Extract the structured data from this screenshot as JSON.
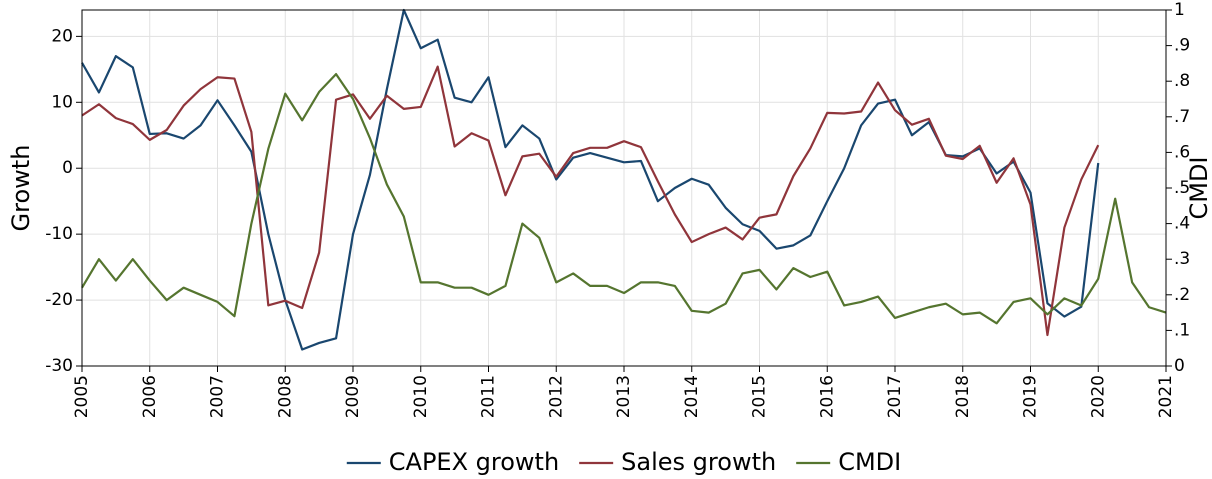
{
  "chart_data": {
    "type": "line",
    "ylabel": "Growth",
    "y2label": "CMDI",
    "xlim": [
      2005,
      2021
    ],
    "xticks": [
      2005,
      2006,
      2007,
      2008,
      2009,
      2010,
      2011,
      2012,
      2013,
      2014,
      2015,
      2016,
      2017,
      2018,
      2019,
      2020,
      2021
    ],
    "ylim": [
      -30,
      24
    ],
    "yticks": [
      -30,
      -20,
      -10,
      0,
      10,
      20
    ],
    "y2lim": [
      0,
      1
    ],
    "y2ticks": [
      0,
      {
        "value": 0.1,
        "label": ".1"
      },
      {
        "value": 0.2,
        "label": ".2"
      },
      {
        "value": 0.3,
        "label": ".3"
      },
      {
        "value": 0.4,
        "label": ".4"
      },
      {
        "value": 0.5,
        "label": ".5"
      },
      {
        "value": 0.6,
        "label": ".6"
      },
      {
        "value": 0.7,
        "label": ".7"
      },
      {
        "value": 0.8,
        "label": ".8"
      },
      {
        "value": 0.9,
        "label": ".9"
      },
      1
    ],
    "grid": true,
    "legend": "bottom",
    "x": [
      2005,
      2005.25,
      2005.5,
      2005.75,
      2006,
      2006.25,
      2006.5,
      2006.75,
      2007,
      2007.25,
      2007.5,
      2007.75,
      2008,
      2008.25,
      2008.5,
      2008.75,
      2009,
      2009.25,
      2009.5,
      2009.75,
      2010,
      2010.25,
      2010.5,
      2010.75,
      2011,
      2011.25,
      2011.5,
      2011.75,
      2012,
      2012.25,
      2012.5,
      2012.75,
      2013,
      2013.25,
      2013.5,
      2013.75,
      2014,
      2014.25,
      2014.5,
      2014.75,
      2015,
      2015.25,
      2015.5,
      2015.75,
      2016,
      2016.25,
      2016.5,
      2016.75,
      2017,
      2017.25,
      2017.5,
      2017.75,
      2018,
      2018.25,
      2018.5,
      2018.75,
      2019,
      2019.25,
      2019.5,
      2019.75,
      2020,
      2020.25,
      2020.5,
      2020.75,
      2021
    ],
    "series": [
      {
        "name": "CAPEX growth",
        "color": "#1a476f",
        "values": [
          16,
          11.5,
          17,
          15.3,
          5.2,
          5.3,
          4.5,
          6.5,
          10.3,
          6.5,
          2.5,
          -10,
          -20,
          -27.5,
          -26.5,
          -25.8,
          -10,
          -1,
          12,
          24,
          18.2,
          19.5,
          10.7,
          10,
          13.8,
          3.2,
          6.5,
          4.5,
          -1.7,
          1.6,
          2.3,
          1.6,
          0.9,
          1.1,
          -5,
          -3,
          -1.6,
          -2.5,
          -6,
          -8.5,
          -9.5,
          -12.2,
          -11.7,
          -10.2,
          -5,
          0,
          6.5,
          9.8,
          10.4,
          5,
          7,
          2,
          1.8,
          3,
          -0.8,
          1,
          -3.7,
          -20.5,
          -22.5,
          -21,
          0.8,
          null,
          null,
          null,
          null
        ]
      },
      {
        "name": "Sales growth",
        "color": "#90353b",
        "values": [
          8,
          9.7,
          7.6,
          6.7,
          4.3,
          5.8,
          9.5,
          12,
          13.8,
          13.6,
          5.5,
          -20.8,
          -20.1,
          -21.2,
          -12.8,
          10.4,
          11.2,
          7.5,
          11,
          9,
          9.3,
          15.4,
          3.3,
          5.3,
          4.2,
          -4.1,
          1.8,
          2.2,
          -1.3,
          2.3,
          3.1,
          3.1,
          4.1,
          3.2,
          -2,
          -7,
          -11.2,
          -10,
          -9,
          -10.8,
          -7.5,
          -7,
          -1.2,
          3,
          8.4,
          8.3,
          8.6,
          13,
          8.8,
          6.6,
          7.5,
          1.9,
          1.4,
          3.4,
          -2.2,
          1.5,
          -5.5,
          -25.3,
          -9,
          -1.7,
          3.5,
          null,
          null,
          null,
          null
        ]
      },
      {
        "name": "CMDI",
        "color": "#55752f",
        "axis": "y2",
        "values": [
          0.22,
          0.3,
          0.24,
          0.3,
          0.24,
          0.185,
          0.22,
          0.2,
          0.18,
          0.14,
          0.4,
          0.61,
          0.765,
          0.69,
          0.77,
          0.82,
          0.75,
          0.64,
          0.51,
          0.42,
          0.235,
          0.235,
          0.22,
          0.22,
          0.2,
          0.225,
          0.4,
          0.36,
          0.235,
          0.26,
          0.225,
          0.225,
          0.205,
          0.235,
          0.235,
          0.225,
          0.155,
          0.15,
          0.175,
          0.26,
          0.27,
          0.215,
          0.275,
          0.25,
          0.265,
          0.17,
          0.18,
          0.195,
          0.135,
          0.15,
          0.165,
          0.175,
          0.145,
          0.15,
          0.12,
          0.18,
          0.19,
          0.145,
          0.19,
          0.17,
          0.245,
          0.47,
          0.235,
          0.165,
          0.15
        ]
      }
    ]
  }
}
